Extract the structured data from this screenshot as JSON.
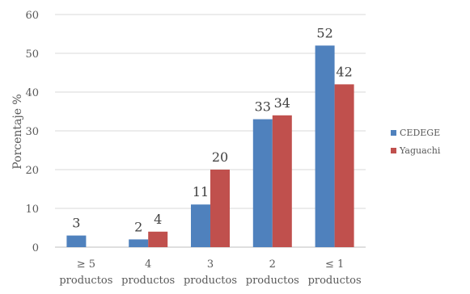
{
  "chart_data": {
    "type": "bar",
    "categories": [
      [
        "≥ 5",
        "productos"
      ],
      [
        "4",
        "productos"
      ],
      [
        "3",
        "productos"
      ],
      [
        "2",
        "productos"
      ],
      [
        "≤ 1",
        "productos"
      ]
    ],
    "series": [
      {
        "name": "CEDEGE",
        "color": "#4F81BD",
        "values": [
          3,
          2,
          11,
          33,
          52
        ]
      },
      {
        "name": "Yaguachi",
        "color": "#C0504D",
        "values": [
          null,
          4,
          20,
          34,
          42
        ]
      }
    ],
    "ylabel": "Porcentaje %",
    "ylim": [
      0,
      60
    ],
    "yticks": [
      0,
      10,
      20,
      30,
      40,
      50,
      60
    ],
    "grid": true,
    "legend_position": "right"
  }
}
